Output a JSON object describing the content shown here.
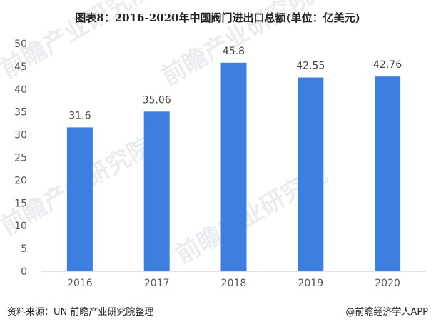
{
  "chart_data": {
    "type": "bar",
    "title": "图表8：2016-2020年中国阀门进出口总额(单位：亿美元)",
    "categories": [
      "2016",
      "2017",
      "2018",
      "2019",
      "2020"
    ],
    "values": [
      31.6,
      35.06,
      45.8,
      42.55,
      42.76
    ],
    "value_labels": [
      "31.6",
      "35.06",
      "45.8",
      "42.55",
      "42.76"
    ],
    "ylim": [
      0,
      50
    ],
    "yticks": [
      "0",
      "5",
      "10",
      "15",
      "20",
      "25",
      "30",
      "35",
      "40",
      "45",
      "50"
    ],
    "bar_color": "#3d7fe0",
    "grid": false,
    "legend": "none"
  },
  "footer": {
    "source": "资料来源：UN 前瞻产业研究院整理",
    "brand": "@前瞻经济学人APP"
  },
  "watermark": {
    "text": "前瞻产业研究院"
  }
}
